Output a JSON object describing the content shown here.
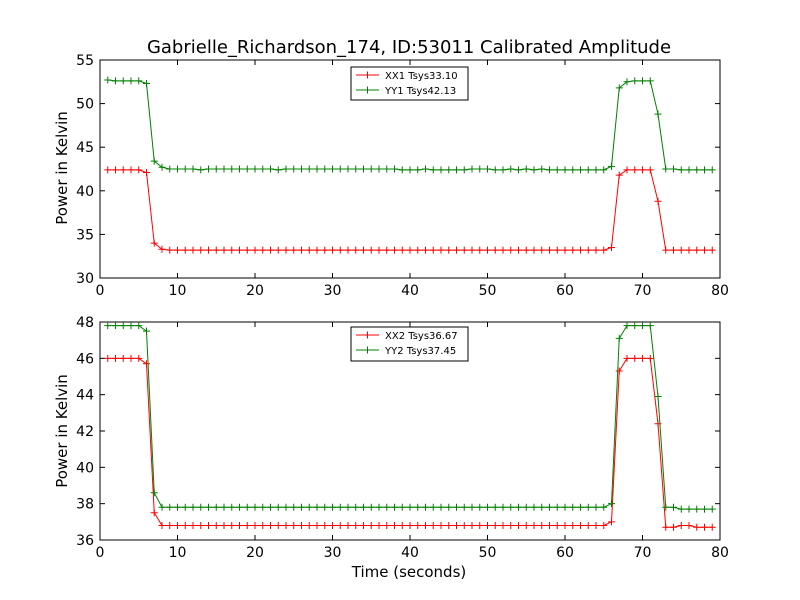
{
  "chart_data": {
    "title": "Gabrielle_Richardson_174, ID:53011 Calibrated Amplitude",
    "xlabel": "Time (seconds)",
    "ylabel": "Power in Kelvin",
    "x": [
      1,
      2,
      3,
      4,
      5,
      6,
      7,
      8,
      9,
      10,
      11,
      12,
      13,
      14,
      15,
      16,
      17,
      18,
      19,
      20,
      21,
      22,
      23,
      24,
      25,
      26,
      27,
      28,
      29,
      30,
      31,
      32,
      33,
      34,
      35,
      36,
      37,
      38,
      39,
      40,
      41,
      42,
      43,
      44,
      45,
      46,
      47,
      48,
      49,
      50,
      51,
      52,
      53,
      54,
      55,
      56,
      57,
      58,
      59,
      60,
      61,
      62,
      63,
      64,
      65,
      66,
      67,
      68,
      69,
      70,
      71,
      72,
      73,
      74,
      75,
      76,
      77,
      78,
      79
    ],
    "panels": [
      {
        "type": "line",
        "xlim": [
          0,
          80
        ],
        "ylim": [
          30,
          55
        ],
        "xticks": [
          "0",
          "10",
          "20",
          "30",
          "40",
          "50",
          "60",
          "70",
          "80"
        ],
        "yticks": [
          "30",
          "35",
          "40",
          "45",
          "50",
          "55"
        ],
        "legend_position": "top-center",
        "series": [
          {
            "name": "XX1 Tsys33.10",
            "color": "#ff0000",
            "values": [
              42.4,
              42.4,
              42.4,
              42.4,
              42.4,
              42.1,
              34.0,
              33.3,
              33.2,
              33.2,
              33.2,
              33.2,
              33.2,
              33.2,
              33.2,
              33.2,
              33.2,
              33.2,
              33.2,
              33.2,
              33.2,
              33.2,
              33.2,
              33.2,
              33.2,
              33.2,
              33.2,
              33.2,
              33.2,
              33.2,
              33.2,
              33.2,
              33.2,
              33.2,
              33.2,
              33.2,
              33.2,
              33.2,
              33.2,
              33.2,
              33.2,
              33.2,
              33.2,
              33.2,
              33.2,
              33.2,
              33.2,
              33.2,
              33.2,
              33.2,
              33.2,
              33.2,
              33.2,
              33.2,
              33.2,
              33.2,
              33.2,
              33.2,
              33.2,
              33.2,
              33.2,
              33.2,
              33.2,
              33.2,
              33.2,
              33.5,
              41.8,
              42.4,
              42.4,
              42.4,
              42.4,
              38.8,
              33.2,
              33.2,
              33.2,
              33.2,
              33.2,
              33.2,
              33.2
            ]
          },
          {
            "name": "YY1 Tsys42.13",
            "color": "#008000",
            "values": [
              52.7,
              52.6,
              52.6,
              52.6,
              52.6,
              52.3,
              43.4,
              42.7,
              42.5,
              42.5,
              42.5,
              42.5,
              42.4,
              42.5,
              42.5,
              42.5,
              42.5,
              42.5,
              42.5,
              42.5,
              42.5,
              42.5,
              42.4,
              42.5,
              42.5,
              42.5,
              42.5,
              42.5,
              42.5,
              42.5,
              42.5,
              42.5,
              42.5,
              42.5,
              42.5,
              42.5,
              42.5,
              42.5,
              42.4,
              42.4,
              42.4,
              42.5,
              42.4,
              42.4,
              42.4,
              42.4,
              42.4,
              42.5,
              42.5,
              42.5,
              42.4,
              42.4,
              42.5,
              42.4,
              42.5,
              42.4,
              42.5,
              42.4,
              42.4,
              42.4,
              42.4,
              42.4,
              42.4,
              42.4,
              42.4,
              42.8,
              51.8,
              52.5,
              52.6,
              52.6,
              52.6,
              48.8,
              42.5,
              42.5,
              42.4,
              42.4,
              42.4,
              42.4,
              42.4
            ]
          }
        ]
      },
      {
        "type": "line",
        "xlim": [
          0,
          80
        ],
        "ylim": [
          36,
          48
        ],
        "xticks": [
          "0",
          "10",
          "20",
          "30",
          "40",
          "50",
          "60",
          "70",
          "80"
        ],
        "yticks": [
          "36",
          "38",
          "40",
          "42",
          "44",
          "46",
          "48"
        ],
        "legend_position": "top-center",
        "series": [
          {
            "name": "XX2 Tsys36.67",
            "color": "#ff0000",
            "values": [
              46.0,
              46.0,
              46.0,
              46.0,
              46.0,
              45.7,
              37.5,
              36.8,
              36.8,
              36.8,
              36.8,
              36.8,
              36.8,
              36.8,
              36.8,
              36.8,
              36.8,
              36.8,
              36.8,
              36.8,
              36.8,
              36.8,
              36.8,
              36.8,
              36.8,
              36.8,
              36.8,
              36.8,
              36.8,
              36.8,
              36.8,
              36.8,
              36.8,
              36.8,
              36.8,
              36.8,
              36.8,
              36.8,
              36.8,
              36.8,
              36.8,
              36.8,
              36.8,
              36.8,
              36.8,
              36.8,
              36.8,
              36.8,
              36.8,
              36.8,
              36.8,
              36.8,
              36.8,
              36.8,
              36.8,
              36.8,
              36.8,
              36.8,
              36.8,
              36.8,
              36.8,
              36.8,
              36.8,
              36.8,
              36.8,
              37.0,
              45.3,
              46.0,
              46.0,
              46.0,
              46.0,
              42.4,
              36.7,
              36.7,
              36.8,
              36.8,
              36.7,
              36.7,
              36.7
            ]
          },
          {
            "name": "YY2 Tsys37.45",
            "color": "#008000",
            "values": [
              47.8,
              47.8,
              47.8,
              47.8,
              47.8,
              47.5,
              38.6,
              37.8,
              37.8,
              37.8,
              37.8,
              37.8,
              37.8,
              37.8,
              37.8,
              37.8,
              37.8,
              37.8,
              37.8,
              37.8,
              37.8,
              37.8,
              37.8,
              37.8,
              37.8,
              37.8,
              37.8,
              37.8,
              37.8,
              37.8,
              37.8,
              37.8,
              37.8,
              37.8,
              37.8,
              37.8,
              37.8,
              37.8,
              37.8,
              37.8,
              37.8,
              37.8,
              37.8,
              37.8,
              37.8,
              37.8,
              37.8,
              37.8,
              37.8,
              37.8,
              37.8,
              37.8,
              37.8,
              37.8,
              37.8,
              37.8,
              37.8,
              37.8,
              37.8,
              37.8,
              37.8,
              37.8,
              37.8,
              37.8,
              37.8,
              38.0,
              47.1,
              47.8,
              47.8,
              47.8,
              47.8,
              43.9,
              37.8,
              37.8,
              37.7,
              37.7,
              37.7,
              37.7,
              37.7
            ]
          }
        ]
      }
    ]
  }
}
